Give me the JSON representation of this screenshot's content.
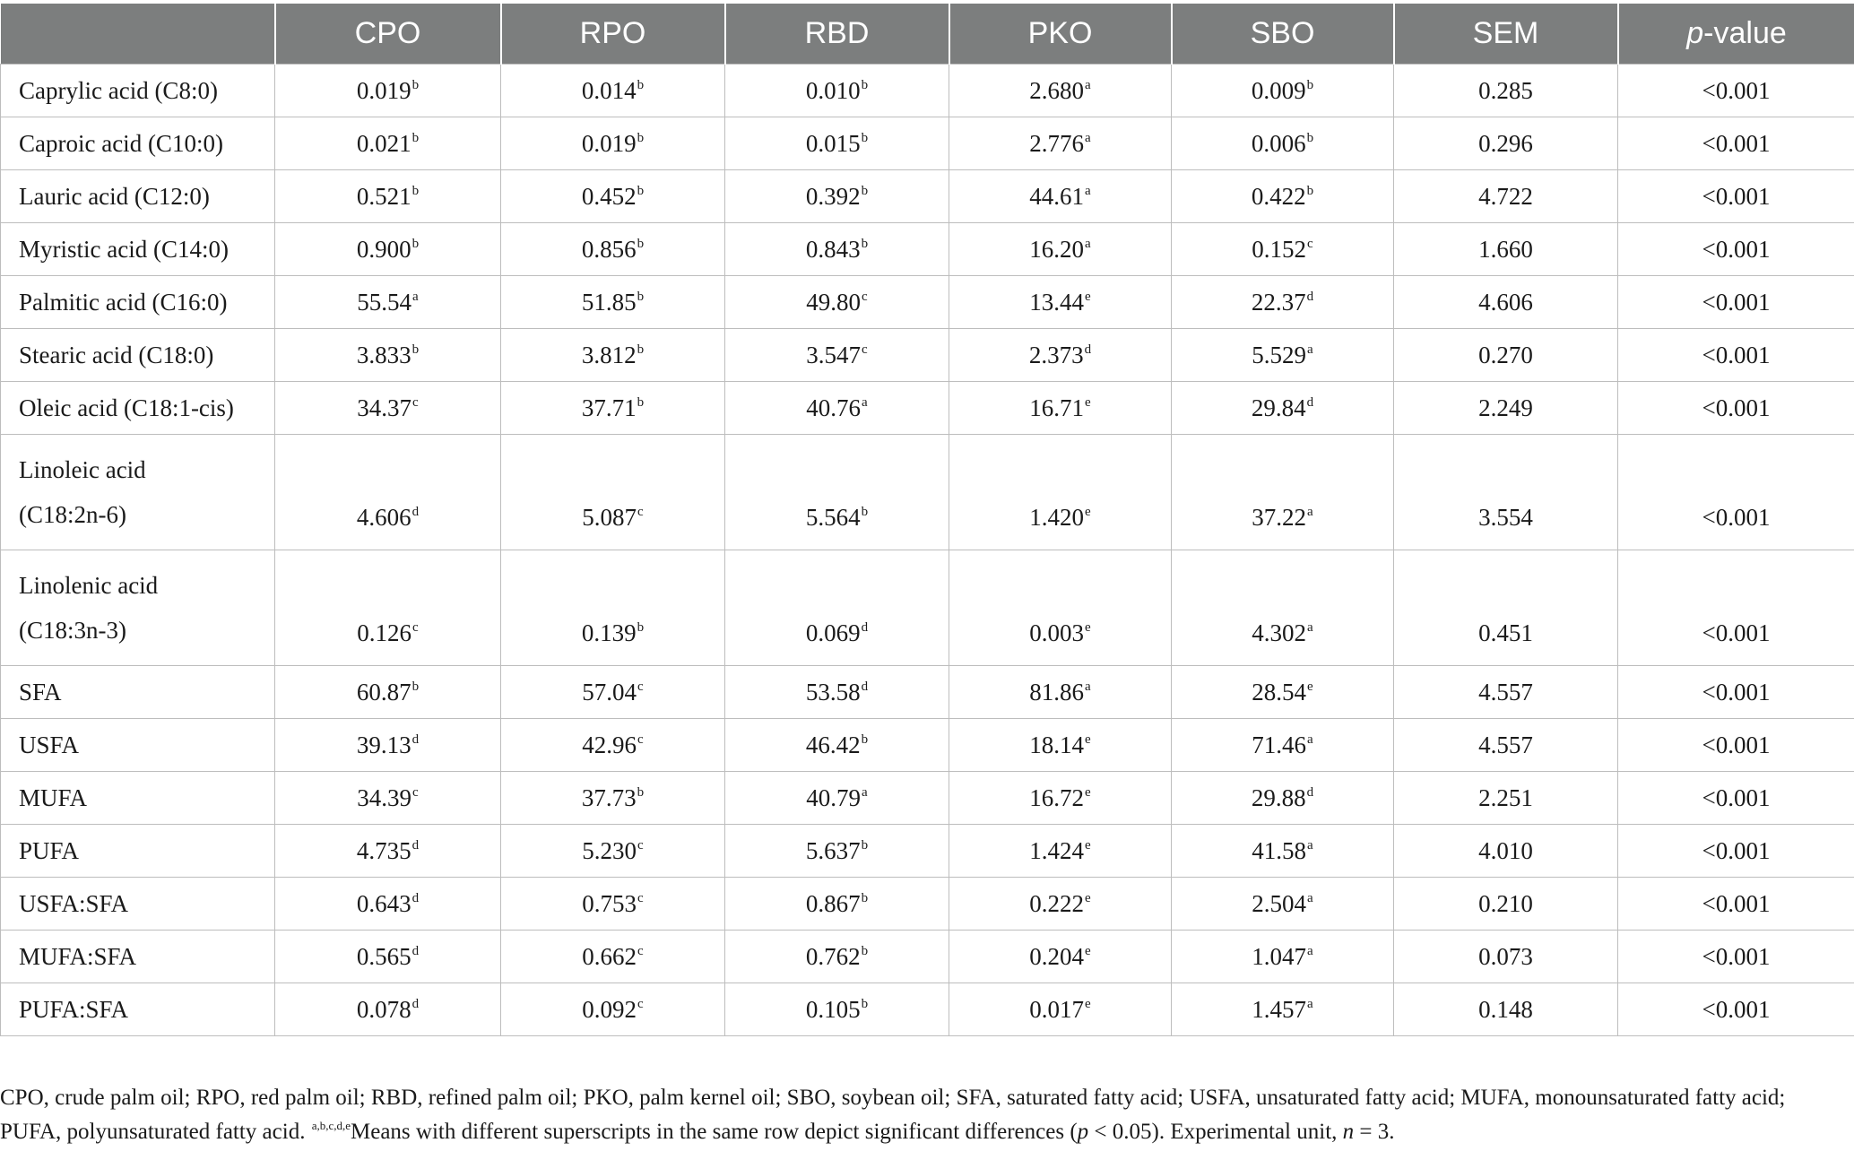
{
  "table": {
    "headers": [
      "",
      "CPO",
      "RPO",
      "RBD",
      "PKO",
      "SBO",
      "SEM",
      "p-value"
    ],
    "rows": [
      {
        "label": [
          "Caprylic acid (C8:0)"
        ],
        "cells": [
          [
            "0.019",
            "b"
          ],
          [
            "0.014",
            "b"
          ],
          [
            "0.010",
            "b"
          ],
          [
            "2.680",
            "a"
          ],
          [
            "0.009",
            "b"
          ]
        ],
        "sem": "0.285",
        "p": "<0.001"
      },
      {
        "label": [
          "Caproic acid (C10:0)"
        ],
        "cells": [
          [
            "0.021",
            "b"
          ],
          [
            "0.019",
            "b"
          ],
          [
            "0.015",
            "b"
          ],
          [
            "2.776",
            "a"
          ],
          [
            "0.006",
            "b"
          ]
        ],
        "sem": "0.296",
        "p": "<0.001"
      },
      {
        "label": [
          "Lauric acid (C12:0)"
        ],
        "cells": [
          [
            "0.521",
            "b"
          ],
          [
            "0.452",
            "b"
          ],
          [
            "0.392",
            "b"
          ],
          [
            "44.61",
            "a"
          ],
          [
            "0.422",
            "b"
          ]
        ],
        "sem": "4.722",
        "p": "<0.001"
      },
      {
        "label": [
          "Myristic acid (C14:0)"
        ],
        "cells": [
          [
            "0.900",
            "b"
          ],
          [
            "0.856",
            "b"
          ],
          [
            "0.843",
            "b"
          ],
          [
            "16.20",
            "a"
          ],
          [
            "0.152",
            "c"
          ]
        ],
        "sem": "1.660",
        "p": "<0.001"
      },
      {
        "label": [
          "Palmitic acid (C16:0)"
        ],
        "cells": [
          [
            "55.54",
            "a"
          ],
          [
            "51.85",
            "b"
          ],
          [
            "49.80",
            "c"
          ],
          [
            "13.44",
            "e"
          ],
          [
            "22.37",
            "d"
          ]
        ],
        "sem": "4.606",
        "p": "<0.001"
      },
      {
        "label": [
          "Stearic acid (C18:0)"
        ],
        "cells": [
          [
            "3.833",
            "b"
          ],
          [
            "3.812",
            "b"
          ],
          [
            "3.547",
            "c"
          ],
          [
            "2.373",
            "d"
          ],
          [
            "5.529",
            "a"
          ]
        ],
        "sem": "0.270",
        "p": "<0.001"
      },
      {
        "label": [
          "Oleic acid (C18:1-cis)"
        ],
        "cells": [
          [
            "34.37",
            "c"
          ],
          [
            "37.71",
            "b"
          ],
          [
            "40.76",
            "a"
          ],
          [
            "16.71",
            "e"
          ],
          [
            "29.84",
            "d"
          ]
        ],
        "sem": "2.249",
        "p": "<0.001"
      },
      {
        "label": [
          "Linoleic acid",
          "(C18:2n-6)"
        ],
        "cells": [
          [
            "4.606",
            "d"
          ],
          [
            "5.087",
            "c"
          ],
          [
            "5.564",
            "b"
          ],
          [
            "1.420",
            "e"
          ],
          [
            "37.22",
            "a"
          ]
        ],
        "sem": "3.554",
        "p": "<0.001"
      },
      {
        "label": [
          "Linolenic acid",
          "(C18:3n-3)"
        ],
        "cells": [
          [
            "0.126",
            "c"
          ],
          [
            "0.139",
            "b"
          ],
          [
            "0.069",
            "d"
          ],
          [
            "0.003",
            "e"
          ],
          [
            "4.302",
            "a"
          ]
        ],
        "sem": "0.451",
        "p": "<0.001"
      },
      {
        "label": [
          "SFA"
        ],
        "cells": [
          [
            "60.87",
            "b"
          ],
          [
            "57.04",
            "c"
          ],
          [
            "53.58",
            "d"
          ],
          [
            "81.86",
            "a"
          ],
          [
            "28.54",
            "e"
          ]
        ],
        "sem": "4.557",
        "p": "<0.001"
      },
      {
        "label": [
          "USFA"
        ],
        "cells": [
          [
            "39.13",
            "d"
          ],
          [
            "42.96",
            "c"
          ],
          [
            "46.42",
            "b"
          ],
          [
            "18.14",
            "e"
          ],
          [
            "71.46",
            "a"
          ]
        ],
        "sem": "4.557",
        "p": "<0.001"
      },
      {
        "label": [
          "MUFA"
        ],
        "cells": [
          [
            "34.39",
            "c"
          ],
          [
            "37.73",
            "b"
          ],
          [
            "40.79",
            "a"
          ],
          [
            "16.72",
            "e"
          ],
          [
            "29.88",
            "d"
          ]
        ],
        "sem": "2.251",
        "p": "<0.001"
      },
      {
        "label": [
          "PUFA"
        ],
        "cells": [
          [
            "4.735",
            "d"
          ],
          [
            "5.230",
            "c"
          ],
          [
            "5.637",
            "b"
          ],
          [
            "1.424",
            "e"
          ],
          [
            "41.58",
            "a"
          ]
        ],
        "sem": "4.010",
        "p": "<0.001"
      },
      {
        "label": [
          "USFA:SFA"
        ],
        "cells": [
          [
            "0.643",
            "d"
          ],
          [
            "0.753",
            "c"
          ],
          [
            "0.867",
            "b"
          ],
          [
            "0.222",
            "e"
          ],
          [
            "2.504",
            "a"
          ]
        ],
        "sem": "0.210",
        "p": "<0.001"
      },
      {
        "label": [
          "MUFA:SFA"
        ],
        "cells": [
          [
            "0.565",
            "d"
          ],
          [
            "0.662",
            "c"
          ],
          [
            "0.762",
            "b"
          ],
          [
            "0.204",
            "e"
          ],
          [
            "1.047",
            "a"
          ]
        ],
        "sem": "0.073",
        "p": "<0.001"
      },
      {
        "label": [
          "PUFA:SFA"
        ],
        "cells": [
          [
            "0.078",
            "d"
          ],
          [
            "0.092",
            "c"
          ],
          [
            "0.105",
            "b"
          ],
          [
            "0.017",
            "e"
          ],
          [
            "1.457",
            "a"
          ]
        ],
        "sem": "0.148",
        "p": "<0.001"
      }
    ]
  },
  "footnote": {
    "abbrev": "CPO, crude palm oil; RPO, red palm oil; RBD, refined palm oil; PKO, palm kernel oil; SBO, soybean oil; SFA, saturated fatty acid; USFA, unsaturated fatty acid; MUFA, monounsaturated fatty acid; PUFA, polyunsaturated fatty acid. ",
    "sup": "a,b,c,d,e",
    "means_a": "Means with different superscripts in the same row depict significant differences (",
    "p_letter": "p",
    "means_b": " < 0.05). Experimental unit, ",
    "n_letter": "n",
    "means_c": " = 3."
  }
}
